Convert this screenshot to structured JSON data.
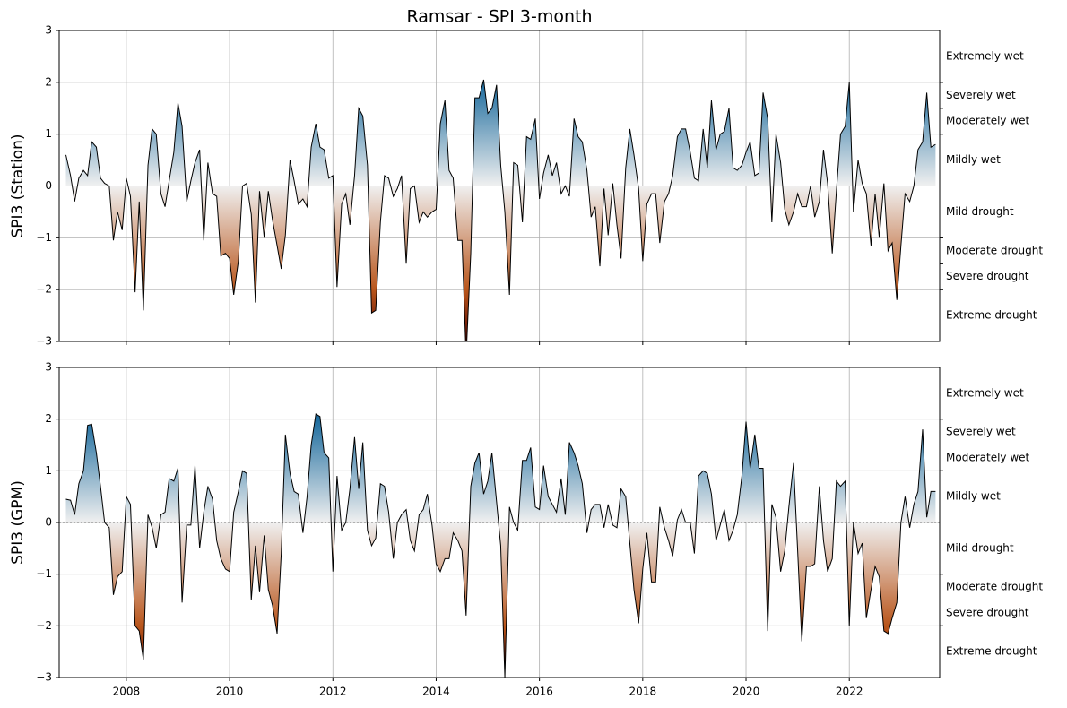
{
  "title": "Ramsar - SPI 3-month",
  "chart_data": [
    {
      "type": "area",
      "ylabel": "SPI3 (Station)",
      "x": [
        2006.83,
        2006.92,
        2007,
        2007.08,
        2007.17,
        2007.25,
        2007.33,
        2007.42,
        2007.5,
        2007.58,
        2007.67,
        2007.75,
        2007.83,
        2007.92,
        2008,
        2008.08,
        2008.17,
        2008.25,
        2008.33,
        2008.42,
        2008.5,
        2008.58,
        2008.67,
        2008.75,
        2008.83,
        2008.92,
        2009,
        2009.08,
        2009.17,
        2009.25,
        2009.33,
        2009.42,
        2009.5,
        2009.58,
        2009.67,
        2009.75,
        2009.83,
        2009.92,
        2010,
        2010.08,
        2010.17,
        2010.25,
        2010.33,
        2010.42,
        2010.5,
        2010.58,
        2010.67,
        2010.75,
        2010.83,
        2010.92,
        2011,
        2011.08,
        2011.17,
        2011.25,
        2011.33,
        2011.42,
        2011.5,
        2011.58,
        2011.67,
        2011.75,
        2011.83,
        2011.92,
        2012,
        2012.08,
        2012.17,
        2012.25,
        2012.33,
        2012.42,
        2012.5,
        2012.58,
        2012.67,
        2012.75,
        2012.83,
        2012.92,
        2013,
        2013.08,
        2013.17,
        2013.25,
        2013.33,
        2013.42,
        2013.5,
        2013.58,
        2013.67,
        2013.75,
        2013.83,
        2013.92,
        2014,
        2014.08,
        2014.17,
        2014.25,
        2014.33,
        2014.42,
        2014.5,
        2014.58,
        2014.67,
        2014.75,
        2014.83,
        2014.92,
        2015,
        2015.08,
        2015.17,
        2015.25,
        2015.33,
        2015.42,
        2015.5,
        2015.58,
        2015.67,
        2015.75,
        2015.83,
        2015.92,
        2016,
        2016.08,
        2016.17,
        2016.25,
        2016.33,
        2016.42,
        2016.5,
        2016.58,
        2016.67,
        2016.75,
        2016.83,
        2016.92,
        2017,
        2017.08,
        2017.17,
        2017.25,
        2017.33,
        2017.42,
        2017.5,
        2017.58,
        2017.67,
        2017.75,
        2017.83,
        2017.92,
        2018,
        2018.08,
        2018.17,
        2018.25,
        2018.33,
        2018.42,
        2018.5,
        2018.58,
        2018.67,
        2018.75,
        2018.83,
        2018.92,
        2019,
        2019.08,
        2019.17,
        2019.25,
        2019.33,
        2019.42,
        2019.5,
        2019.58,
        2019.67,
        2019.75,
        2019.83,
        2019.92,
        2020,
        2020.08,
        2020.17,
        2020.25,
        2020.33,
        2020.42,
        2020.5,
        2020.58,
        2020.67,
        2020.75,
        2020.83,
        2020.92,
        2021,
        2021.08,
        2021.17,
        2021.25,
        2021.33,
        2021.42,
        2021.5,
        2021.58,
        2021.67,
        2021.75,
        2021.83,
        2021.92,
        2022,
        2022.08,
        2022.17,
        2022.25,
        2022.33,
        2022.42,
        2022.5,
        2022.58,
        2022.67,
        2022.75,
        2022.83,
        2022.92,
        2023,
        2023.08,
        2023.17,
        2023.25,
        2023.33,
        2023.42,
        2023.5,
        2023.58,
        2023.67
      ],
      "values": [
        0.6,
        0.2,
        -0.3,
        0.15,
        0.3,
        0.2,
        0.85,
        0.75,
        0.15,
        0.05,
        0.0,
        -1.05,
        -0.5,
        -0.85,
        0.15,
        -0.2,
        -2.05,
        -0.3,
        -2.4,
        0.4,
        1.1,
        1.0,
        -0.15,
        -0.4,
        0.1,
        0.65,
        1.6,
        1.15,
        -0.3,
        0.1,
        0.45,
        0.7,
        -1.05,
        0.45,
        -0.15,
        -0.2,
        -1.35,
        -1.3,
        -1.4,
        -2.1,
        -1.45,
        0.0,
        0.05,
        -0.55,
        -2.25,
        -0.1,
        -1.0,
        -0.1,
        -0.65,
        -1.15,
        -1.6,
        -0.95,
        0.5,
        0.1,
        -0.35,
        -0.25,
        -0.4,
        0.75,
        1.2,
        0.75,
        0.7,
        0.15,
        0.2,
        -1.95,
        -0.35,
        -0.15,
        -0.75,
        0.2,
        1.5,
        1.35,
        0.4,
        -2.45,
        -2.4,
        -0.7,
        0.2,
        0.15,
        -0.2,
        -0.05,
        0.2,
        -1.5,
        -0.05,
        0.0,
        -0.7,
        -0.5,
        -0.6,
        -0.5,
        -0.45,
        1.2,
        1.65,
        0.3,
        0.15,
        -1.05,
        -1.05,
        -3.3,
        -1.3,
        1.7,
        1.7,
        2.05,
        1.4,
        1.5,
        1.95,
        0.4,
        -0.5,
        -2.1,
        0.45,
        0.4,
        -0.7,
        0.95,
        0.9,
        1.3,
        -0.25,
        0.25,
        0.6,
        0.2,
        0.45,
        -0.15,
        0.0,
        -0.2,
        1.3,
        0.95,
        0.85,
        0.3,
        -0.6,
        -0.4,
        -1.55,
        -0.05,
        -0.95,
        0.05,
        -0.75,
        -1.4,
        0.35,
        1.1,
        0.6,
        -0.05,
        -1.45,
        -0.35,
        -0.15,
        -0.15,
        -1.1,
        -0.3,
        -0.15,
        0.2,
        0.95,
        1.1,
        1.1,
        0.65,
        0.15,
        0.1,
        1.1,
        0.35,
        1.65,
        0.7,
        1.0,
        1.05,
        1.5,
        0.35,
        0.3,
        0.4,
        0.65,
        0.85,
        0.2,
        0.25,
        1.8,
        1.3,
        -0.7,
        1.0,
        0.45,
        -0.45,
        -0.75,
        -0.5,
        -0.15,
        -0.4,
        -0.4,
        0.0,
        -0.6,
        -0.3,
        0.7,
        0.05,
        -1.3,
        -0.1,
        1.0,
        1.15,
        2.0,
        -0.5,
        0.5,
        0.05,
        -0.15,
        -1.15,
        -0.15,
        -1.0,
        0.05,
        -1.25,
        -1.1,
        -2.2,
        -1.15,
        -0.15,
        -0.3,
        0.0,
        0.7,
        0.85,
        1.8,
        0.75,
        0.8
      ],
      "xlim": [
        2006.7,
        2023.75
      ],
      "xticks": [
        2008,
        2010,
        2012,
        2014,
        2016,
        2018,
        2020,
        2022
      ],
      "ylim": [
        -3,
        3
      ],
      "yticks": [
        {
          "value": -3,
          "label": "−3"
        },
        {
          "value": -2,
          "label": "−2"
        },
        {
          "value": -1,
          "label": "−1"
        },
        0,
        1,
        2,
        3
      ],
      "grid": true,
      "line_color": "#000000",
      "fill_colors": [
        {
          "value": 3,
          "color": "#053f72"
        },
        {
          "value": 2,
          "color": "#1d6c9e"
        },
        {
          "value": 0,
          "color": "#f0f0f0"
        },
        {
          "value": -2,
          "color": "#b9561c"
        },
        {
          "value": -3,
          "color": "#5a0800"
        }
      ],
      "classes": [
        {
          "label": "Extremely wet",
          "range": [
            2,
            3
          ]
        },
        {
          "label": "Severely wet",
          "range": [
            1.5,
            2
          ]
        },
        {
          "label": "Moderately wet",
          "range": [
            1,
            1.5
          ]
        },
        {
          "label": "Mildly wet",
          "range": [
            0,
            1
          ]
        },
        {
          "label": "Mild drought",
          "range": [
            -1,
            0
          ]
        },
        {
          "label": "Moderate drought",
          "range": [
            -1.5,
            -1
          ]
        },
        {
          "label": "Severe drought",
          "range": [
            -2,
            -1.5
          ]
        },
        {
          "label": "Extreme drought",
          "range": [
            -3,
            -2
          ]
        }
      ]
    },
    {
      "type": "area",
      "ylabel": "SPI3 (GPM)",
      "x": [
        2006.83,
        2006.92,
        2007,
        2007.08,
        2007.17,
        2007.25,
        2007.33,
        2007.42,
        2007.5,
        2007.58,
        2007.67,
        2007.75,
        2007.83,
        2007.92,
        2008,
        2008.08,
        2008.17,
        2008.25,
        2008.33,
        2008.42,
        2008.5,
        2008.58,
        2008.67,
        2008.75,
        2008.83,
        2008.92,
        2009,
        2009.08,
        2009.17,
        2009.25,
        2009.33,
        2009.42,
        2009.5,
        2009.58,
        2009.67,
        2009.75,
        2009.83,
        2009.92,
        2010,
        2010.08,
        2010.17,
        2010.25,
        2010.33,
        2010.42,
        2010.5,
        2010.58,
        2010.67,
        2010.75,
        2010.83,
        2010.92,
        2011,
        2011.08,
        2011.17,
        2011.25,
        2011.33,
        2011.42,
        2011.5,
        2011.58,
        2011.67,
        2011.75,
        2011.83,
        2011.92,
        2012,
        2012.08,
        2012.17,
        2012.25,
        2012.33,
        2012.42,
        2012.5,
        2012.58,
        2012.67,
        2012.75,
        2012.83,
        2012.92,
        2013,
        2013.08,
        2013.17,
        2013.25,
        2013.33,
        2013.42,
        2013.5,
        2013.58,
        2013.67,
        2013.75,
        2013.83,
        2013.92,
        2014,
        2014.08,
        2014.17,
        2014.25,
        2014.33,
        2014.42,
        2014.5,
        2014.58,
        2014.67,
        2014.75,
        2014.83,
        2014.92,
        2015,
        2015.08,
        2015.17,
        2015.25,
        2015.33,
        2015.42,
        2015.5,
        2015.58,
        2015.67,
        2015.75,
        2015.83,
        2015.92,
        2016,
        2016.08,
        2016.17,
        2016.25,
        2016.33,
        2016.42,
        2016.5,
        2016.58,
        2016.67,
        2016.75,
        2016.83,
        2016.92,
        2017,
        2017.08,
        2017.17,
        2017.25,
        2017.33,
        2017.42,
        2017.5,
        2017.58,
        2017.67,
        2017.75,
        2017.83,
        2017.92,
        2018,
        2018.08,
        2018.17,
        2018.25,
        2018.33,
        2018.42,
        2018.5,
        2018.58,
        2018.67,
        2018.75,
        2018.83,
        2018.92,
        2019,
        2019.08,
        2019.17,
        2019.25,
        2019.33,
        2019.42,
        2019.5,
        2019.58,
        2019.67,
        2019.75,
        2019.83,
        2019.92,
        2020,
        2020.08,
        2020.17,
        2020.25,
        2020.33,
        2020.42,
        2020.5,
        2020.58,
        2020.67,
        2020.75,
        2020.83,
        2020.92,
        2021,
        2021.08,
        2021.17,
        2021.25,
        2021.33,
        2021.42,
        2021.5,
        2021.58,
        2021.67,
        2021.75,
        2021.83,
        2021.92,
        2022,
        2022.08,
        2022.17,
        2022.25,
        2022.33,
        2022.42,
        2022.5,
        2022.58,
        2022.67,
        2022.75,
        2022.83,
        2022.92,
        2023,
        2023.08,
        2023.17,
        2023.25,
        2023.33,
        2023.42,
        2023.5,
        2023.58,
        2023.67
      ],
      "values": [
        0.45,
        0.43,
        0.15,
        0.75,
        1.0,
        1.88,
        1.9,
        1.35,
        0.7,
        0.0,
        -0.1,
        -1.4,
        -1.05,
        -0.95,
        0.5,
        0.35,
        -2.0,
        -2.1,
        -2.65,
        0.15,
        -0.1,
        -0.5,
        0.15,
        0.2,
        0.85,
        0.8,
        1.05,
        -1.55,
        -0.05,
        -0.05,
        1.1,
        -0.5,
        0.2,
        0.7,
        0.45,
        -0.35,
        -0.7,
        -0.9,
        -0.95,
        0.2,
        0.6,
        1.0,
        0.95,
        -1.5,
        -0.45,
        -1.35,
        -0.25,
        -1.3,
        -1.6,
        -2.15,
        -0.6,
        1.7,
        0.95,
        0.6,
        0.55,
        -0.2,
        0.5,
        1.5,
        2.1,
        2.05,
        1.35,
        1.25,
        -0.95,
        0.9,
        -0.15,
        0.0,
        0.65,
        1.65,
        0.65,
        1.55,
        -0.15,
        -0.45,
        -0.3,
        0.75,
        0.7,
        0.2,
        -0.7,
        0.0,
        0.15,
        0.25,
        -0.35,
        -0.55,
        0.15,
        0.25,
        0.55,
        -0.05,
        -0.8,
        -0.95,
        -0.7,
        -0.7,
        -0.2,
        -0.35,
        -0.55,
        -1.8,
        0.7,
        1.15,
        1.35,
        0.55,
        0.8,
        1.35,
        0.4,
        -0.45,
        -3.0,
        0.3,
        0.0,
        -0.15,
        1.2,
        1.2,
        1.45,
        0.3,
        0.25,
        1.1,
        0.5,
        0.35,
        0.2,
        0.85,
        0.15,
        1.55,
        1.35,
        1.1,
        0.75,
        -0.2,
        0.25,
        0.35,
        0.35,
        -0.1,
        0.35,
        -0.05,
        -0.1,
        0.65,
        0.5,
        -0.4,
        -1.3,
        -1.95,
        -0.9,
        -0.2,
        -1.15,
        -1.15,
        0.3,
        -0.1,
        -0.35,
        -0.65,
        0.05,
        0.25,
        0.0,
        0.0,
        -0.6,
        0.9,
        1.0,
        0.95,
        0.55,
        -0.35,
        -0.05,
        0.25,
        -0.35,
        -0.15,
        0.15,
        0.9,
        1.95,
        1.05,
        1.7,
        1.05,
        1.05,
        -2.1,
        0.35,
        0.1,
        -0.95,
        -0.55,
        0.3,
        1.15,
        -0.55,
        -2.3,
        -0.85,
        -0.85,
        -0.8,
        0.7,
        -0.35,
        -0.95,
        -0.7,
        0.8,
        0.7,
        0.8,
        -2.0,
        0.0,
        -0.6,
        -0.4,
        -1.85,
        -1.3,
        -0.85,
        -1.05,
        -2.1,
        -2.15,
        -1.85,
        -1.55,
        0.0,
        0.5,
        -0.1,
        0.35,
        0.6,
        1.8,
        0.1,
        0.6,
        0.6
      ],
      "xlim": [
        2006.7,
        2023.75
      ],
      "xticks": [
        2008,
        2010,
        2012,
        2014,
        2016,
        2018,
        2020,
        2022
      ],
      "ylim": [
        -3,
        3
      ],
      "yticks": [
        {
          "value": -3,
          "label": "−3"
        },
        {
          "value": -2,
          "label": "−2"
        },
        {
          "value": -1,
          "label": "−1"
        },
        0,
        1,
        2,
        3
      ],
      "grid": true,
      "line_color": "#000000",
      "fill_colors": [
        {
          "value": 3,
          "color": "#053f72"
        },
        {
          "value": 2,
          "color": "#1d6c9e"
        },
        {
          "value": 0,
          "color": "#f0f0f0"
        },
        {
          "value": -2,
          "color": "#b9561c"
        },
        {
          "value": -3,
          "color": "#5a0800"
        }
      ],
      "classes": [
        {
          "label": "Extremely wet",
          "range": [
            2,
            3
          ]
        },
        {
          "label": "Severely wet",
          "range": [
            1.5,
            2
          ]
        },
        {
          "label": "Moderately wet",
          "range": [
            1,
            1.5
          ]
        },
        {
          "label": "Mildly wet",
          "range": [
            0,
            1
          ]
        },
        {
          "label": "Mild drought",
          "range": [
            -1,
            0
          ]
        },
        {
          "label": "Moderate drought",
          "range": [
            -1.5,
            -1
          ]
        },
        {
          "label": "Severe drought",
          "range": [
            -2,
            -1.5
          ]
        },
        {
          "label": "Extreme drought",
          "range": [
            -3,
            -2
          ]
        }
      ]
    }
  ]
}
